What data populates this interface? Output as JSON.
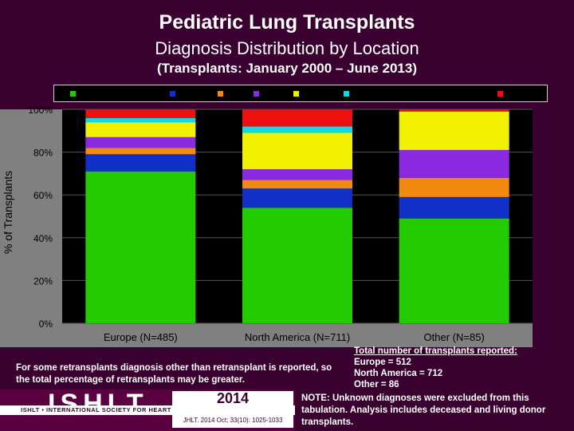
{
  "title": "Pediatric Lung Transplants",
  "subtitle": "Diagnosis Distribution by Location",
  "period": "(Transplants: January 2000 – June 2013)",
  "notes": {
    "left": "For some retransplants diagnosis other than retransplant is reported, so the total percentage of retransplants may be greater.",
    "totals_header": "Total number of transplants reported:",
    "totals": [
      "Europe = 512",
      "North America = 712",
      "Other = 86"
    ],
    "right": "NOTE: Unknown diagnoses were excluded from this tabulation. Analysis includes deceased and living donor transplants."
  },
  "logo": {
    "letters": "ISHLT",
    "text": "ISHLT • INTERNATIONAL SOCIETY FOR HEART AND LUNG TRANSPLANTATION",
    "year": "2014",
    "citation": "JHLT. 2014 Oct; 33(10): 1025-1033"
  },
  "chart_data": {
    "type": "bar",
    "stacked": true,
    "ylabel": "% of Transplants",
    "ylim": [
      0,
      100
    ],
    "yticks": [
      "0%",
      "20%",
      "40%",
      "60%",
      "80%",
      "100%"
    ],
    "categories": [
      "Europe (N=485)",
      "North America (N=711)",
      "Other (N=85)"
    ],
    "series": [
      {
        "color": "#22cc00",
        "values": [
          71,
          54,
          49
        ]
      },
      {
        "color": "#1030c8",
        "values": [
          8,
          9,
          10
        ]
      },
      {
        "color": "#f08a10",
        "values": [
          3,
          4,
          9
        ]
      },
      {
        "color": "#8a2be2",
        "values": [
          5,
          5,
          13
        ]
      },
      {
        "color": "#f0f000",
        "values": [
          7,
          17,
          18
        ]
      },
      {
        "color": "#10d8e8",
        "values": [
          2,
          3,
          0
        ]
      },
      {
        "color": "#ee1010",
        "values": [
          4,
          8,
          1
        ]
      }
    ]
  }
}
